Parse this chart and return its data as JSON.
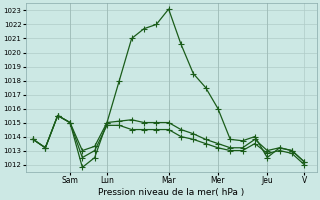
{
  "xlabel": "Pression niveau de la mer( hPa )",
  "ylim": [
    1011.5,
    1023.5
  ],
  "yticks": [
    1012,
    1013,
    1014,
    1015,
    1016,
    1017,
    1018,
    1019,
    1020,
    1021,
    1022,
    1023
  ],
  "day_labels": [
    "Sam",
    "Lun",
    "Mar",
    "Mer",
    "Jeu",
    "V"
  ],
  "background_color": "#cce8e4",
  "grid_color": "#b0ccc8",
  "line_color": "#1a5c1a",
  "series1_x": [
    0,
    0.5,
    1.0,
    1.5,
    2.0,
    2.5,
    3.0,
    3.5,
    4.0,
    4.5,
    5.0,
    5.5,
    6.0,
    6.5,
    7.0,
    7.5,
    8.0,
    8.5,
    9.0,
    9.5,
    10.0,
    10.5,
    11.0
  ],
  "series1_y": [
    1013.8,
    1013.2,
    1015.5,
    1015.0,
    1011.8,
    1012.5,
    1015.0,
    1018.0,
    1021.0,
    1021.7,
    1022.0,
    1023.1,
    1020.6,
    1018.5,
    1017.5,
    1016.0,
    1013.8,
    1013.7,
    1014.0,
    1012.5,
    1013.2,
    1013.0,
    1012.2
  ],
  "series2_x": [
    0,
    0.5,
    1.0,
    1.5,
    2.0,
    2.5,
    3.0,
    3.5,
    4.0,
    4.5,
    5.0,
    5.5,
    6.0,
    6.5,
    7.0,
    7.5,
    8.0,
    8.5,
    9.0,
    9.5,
    10.0,
    10.5,
    11.0
  ],
  "series2_y": [
    1013.8,
    1013.2,
    1015.5,
    1015.0,
    1013.0,
    1013.3,
    1015.0,
    1015.1,
    1015.2,
    1015.0,
    1015.0,
    1015.0,
    1014.5,
    1014.2,
    1013.8,
    1013.5,
    1013.2,
    1013.2,
    1013.8,
    1013.0,
    1013.2,
    1013.0,
    1012.2
  ],
  "series3_x": [
    0,
    0.5,
    1.0,
    1.5,
    2.0,
    2.5,
    3.0,
    3.5,
    4.0,
    4.5,
    5.0,
    5.5,
    6.0,
    6.5,
    7.0,
    7.5,
    8.0,
    8.5,
    9.0,
    9.5,
    10.0,
    10.5,
    11.0
  ],
  "series3_y": [
    1013.8,
    1013.2,
    1015.5,
    1015.0,
    1012.5,
    1013.0,
    1014.8,
    1014.8,
    1014.5,
    1014.5,
    1014.5,
    1014.5,
    1014.0,
    1013.8,
    1013.5,
    1013.2,
    1013.0,
    1013.0,
    1013.5,
    1012.8,
    1013.0,
    1012.8,
    1012.0
  ],
  "day_x": [
    1.5,
    3.0,
    5.5,
    7.5,
    9.5,
    11.0
  ],
  "sep_x": [
    1.5,
    3.0,
    5.5,
    7.5,
    9.5
  ]
}
